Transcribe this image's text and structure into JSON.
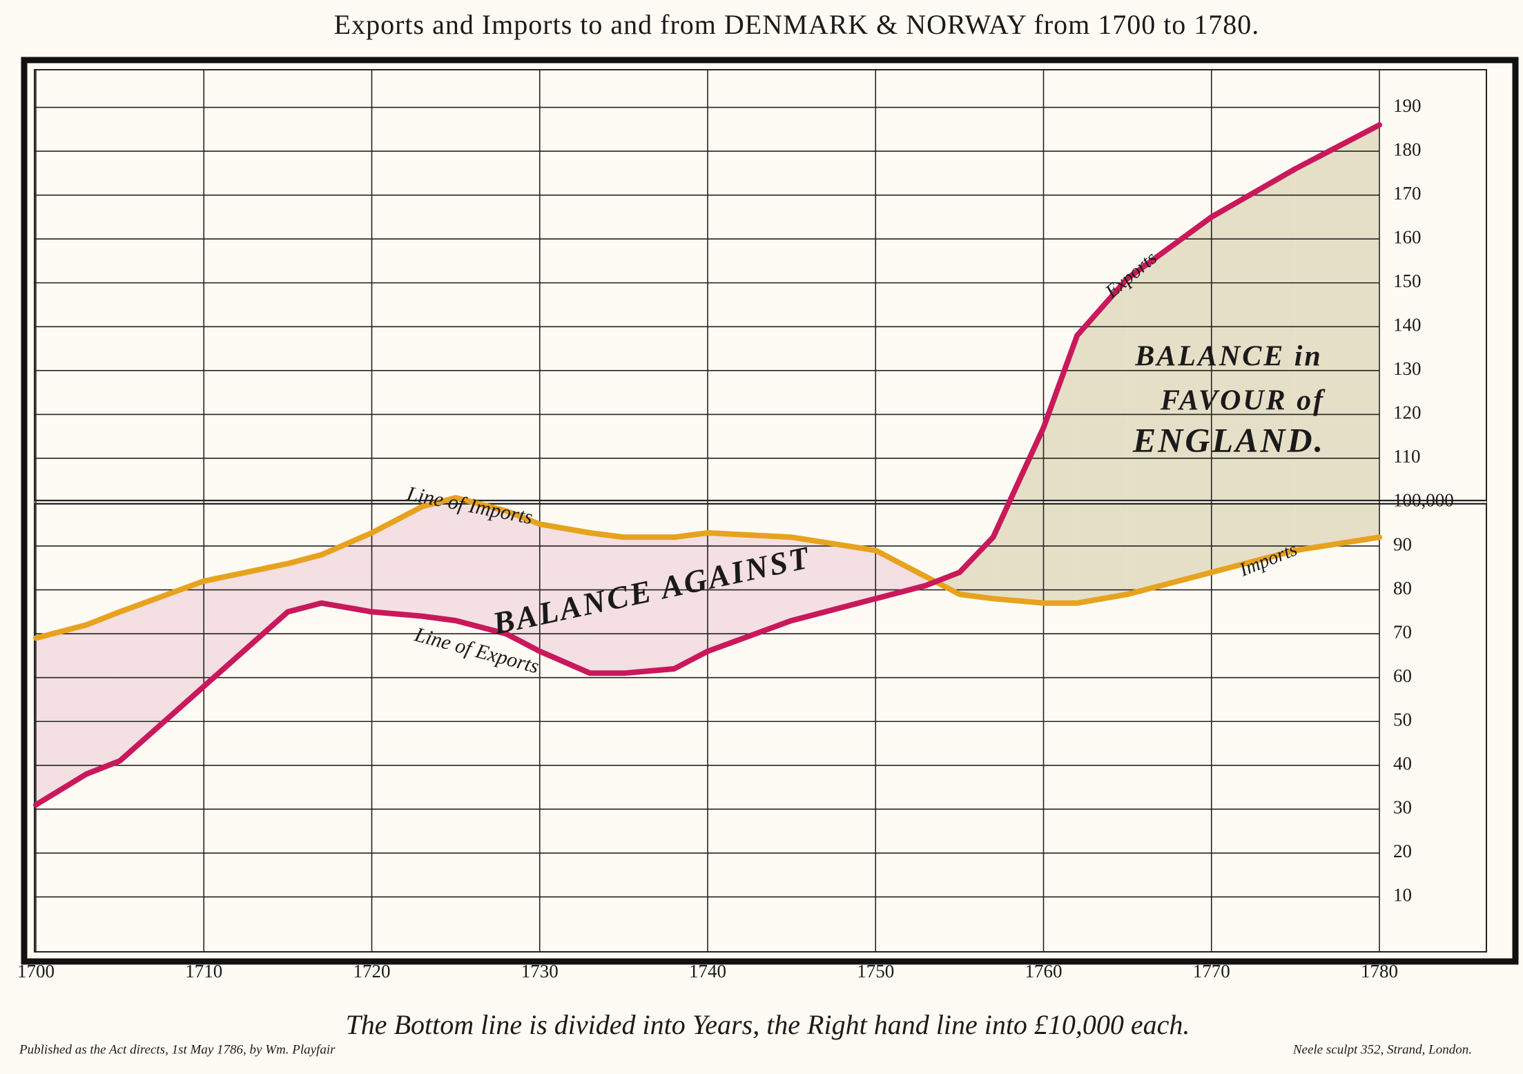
{
  "chart_data": {
    "type": "line",
    "title": "Exports and Imports to and from DENMARK & NORWAY from 1700 to 1780.",
    "x_label": "The Bottom line is divided into Years, the Right hand line into £10,000 each.",
    "footer_left": "Published as the Act directs, 1st May 1786, by Wm. Playfair",
    "footer_right": "Neele sculpt 352, Strand, London.",
    "annotations": [
      "Line of Imports",
      "Line of Exports",
      "BALANCE AGAINST",
      "BALANCE in",
      "FAVOUR of",
      "ENGLAND.",
      "Exports",
      "Imports"
    ],
    "x": [
      1700,
      1703,
      1705,
      1710,
      1715,
      1717,
      1720,
      1723,
      1725,
      1728,
      1730,
      1733,
      1735,
      1738,
      1740,
      1745,
      1750,
      1753,
      1755,
      1757,
      1760,
      1762,
      1765,
      1770,
      1775,
      1780
    ],
    "series": [
      {
        "name": "Imports",
        "color": "#e7a21e",
        "values": [
          69,
          72,
          75,
          82,
          86,
          88,
          93,
          99,
          101,
          98,
          95,
          93,
          92,
          92,
          93,
          92,
          89,
          83,
          79,
          78,
          77,
          77,
          79,
          84,
          89,
          92
        ]
      },
      {
        "name": "Exports",
        "color": "#c9185b",
        "values": [
          31,
          38,
          41,
          58,
          75,
          77,
          75,
          74,
          73,
          70,
          66,
          61,
          61,
          62,
          66,
          73,
          78,
          81,
          84,
          92,
          117,
          138,
          151,
          165,
          176,
          186
        ]
      }
    ],
    "fill_against": "#f4dfe2",
    "fill_favour": "#e6dfc8",
    "xlim": [
      1700,
      1780
    ],
    "xticks": [
      1700,
      1710,
      1720,
      1730,
      1740,
      1750,
      1760,
      1770,
      1780
    ],
    "ylim": [
      0,
      200
    ],
    "yticks": [
      10,
      20,
      30,
      40,
      50,
      60,
      70,
      80,
      90,
      {
        "value": 100,
        "label": "100,000"
      },
      110,
      120,
      130,
      140,
      150,
      160,
      170,
      180,
      190
    ],
    "grid": true
  }
}
